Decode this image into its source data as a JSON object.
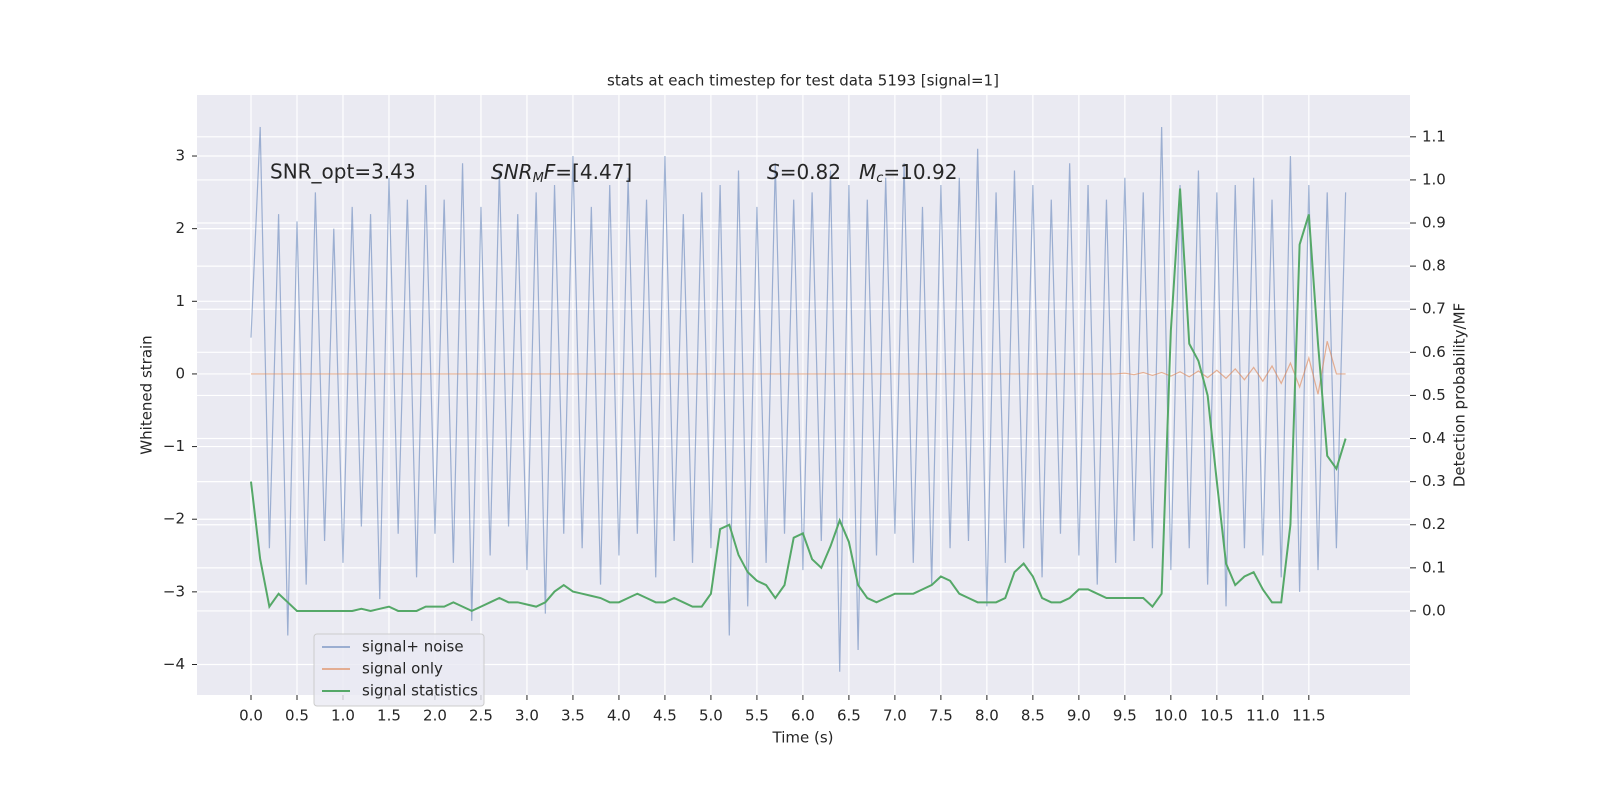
{
  "chart_data": {
    "type": "line",
    "title": "stats at each timestep for test data 5193 [signal=1]",
    "xlabel": "Time (s)",
    "ylabel": "Whitened strain",
    "y2label": "Detection probability/MF",
    "annotations": [
      {
        "text": "SNR_opt=3.43"
      },
      {
        "italic": "SNR",
        "sub": "M",
        "italic2": "F",
        "text": "=[4.47]"
      },
      {
        "italic": "S",
        "text": "=0.82",
        "italic2": "M",
        "sub": "c",
        "text2": "=10.92"
      }
    ],
    "grid": true,
    "legend": "lower left",
    "xlim": [
      -0.587,
      12.6
    ],
    "ylim": [
      -4.42,
      3.84
    ],
    "y2lim": [
      -0.195,
      1.197
    ],
    "xticks": [
      {
        "value": 0,
        "label": "0.0"
      },
      0.5,
      {
        "value": 1,
        "label": "1.0"
      },
      1.5,
      {
        "value": 2,
        "label": "2.0"
      },
      2.5,
      {
        "value": 3,
        "label": "3.0"
      },
      3.5,
      {
        "value": 4,
        "label": "4.0"
      },
      4.5,
      {
        "value": 5,
        "label": "5.0"
      },
      5.5,
      {
        "value": 6,
        "label": "6.0"
      },
      6.5,
      {
        "value": 7,
        "label": "7.0"
      },
      7.5,
      {
        "value": 8,
        "label": "8.0"
      },
      8.5,
      {
        "value": 9,
        "label": "9.0"
      },
      9.5,
      {
        "value": 10,
        "label": "10.0"
      },
      10.5,
      {
        "value": 11,
        "label": "11.0"
      },
      11.5
    ],
    "yticks": [
      {
        "value": -4,
        "label": "−4"
      },
      {
        "value": -3,
        "label": "−3"
      },
      {
        "value": -2,
        "label": "−2"
      },
      {
        "value": -1,
        "label": "−1"
      },
      0,
      1,
      2,
      3
    ],
    "y2ticks": [
      {
        "value": 0,
        "label": "0.0"
      },
      0.1,
      0.2,
      0.3,
      0.4,
      0.5,
      0.6,
      0.7,
      0.8,
      0.9,
      {
        "value": 1,
        "label": "1.0"
      },
      1.1
    ],
    "x": [
      0,
      0.1,
      0.2,
      0.3,
      0.4,
      0.5,
      0.6,
      0.7,
      0.8,
      0.9,
      1,
      1.1,
      1.2,
      1.3,
      1.4,
      1.5,
      1.6,
      1.7,
      1.8,
      1.9,
      2,
      2.1,
      2.2,
      2.3,
      2.4,
      2.5,
      2.6,
      2.7,
      2.8,
      2.9,
      3,
      3.1,
      3.2,
      3.3,
      3.4,
      3.5,
      3.6,
      3.7,
      3.8,
      3.9,
      4,
      4.1,
      4.2,
      4.3,
      4.4,
      4.5,
      4.6,
      4.7,
      4.8,
      4.9,
      5,
      5.1,
      5.2,
      5.3,
      5.4,
      5.5,
      5.6,
      5.7,
      5.8,
      5.9,
      6,
      6.1,
      6.2,
      6.3,
      6.4,
      6.5,
      6.6,
      6.7,
      6.8,
      6.9,
      7,
      7.1,
      7.2,
      7.3,
      7.4,
      7.5,
      7.6,
      7.7,
      7.8,
      7.9,
      8,
      8.1,
      8.2,
      8.3,
      8.4,
      8.5,
      8.6,
      8.7,
      8.8,
      8.9,
      9,
      9.1,
      9.2,
      9.3,
      9.4,
      9.5,
      9.6,
      9.7,
      9.8,
      9.9,
      10,
      10.1,
      10.2,
      10.3,
      10.4,
      10.5,
      10.6,
      10.7,
      10.8,
      10.9,
      11,
      11.1,
      11.2,
      11.3,
      11.4,
      11.5,
      11.6,
      11.7,
      11.8,
      11.9
    ],
    "series": [
      {
        "name": "signal+ noise",
        "color": "#4c72b0",
        "opacity": 0.5,
        "values": [
          0.5,
          3.4,
          -2.4,
          2.2,
          -3.6,
          2.1,
          -2.9,
          2.5,
          -2.3,
          2.0,
          -2.6,
          2.3,
          -2.1,
          2.2,
          -3.1,
          2.7,
          -2.2,
          2.4,
          -2.8,
          2.6,
          -2.2,
          2.4,
          -2.6,
          2.9,
          -3.4,
          2.3,
          -2.5,
          2.8,
          -2.1,
          2.2,
          -2.7,
          2.5,
          -3.3,
          2.6,
          -2.2,
          3.0,
          -2.4,
          2.3,
          -2.9,
          2.6,
          -2.5,
          2.7,
          -2.2,
          2.4,
          -2.8,
          3.0,
          -2.3,
          2.2,
          -2.6,
          2.5,
          -2.4,
          2.6,
          -3.6,
          2.8,
          -3.2,
          2.3,
          -2.6,
          2.9,
          -2.2,
          2.4,
          -2.7,
          2.5,
          -2.3,
          2.8,
          -4.1,
          2.6,
          -3.8,
          2.4,
          -2.5,
          2.7,
          -2.2,
          2.9,
          -2.6,
          2.3,
          -2.9,
          2.6,
          -2.4,
          2.7,
          -2.3,
          3.1,
          -3.2,
          2.5,
          -2.6,
          2.8,
          -2.4,
          2.6,
          -2.8,
          2.4,
          -2.2,
          2.9,
          -2.5,
          2.6,
          -2.9,
          2.4,
          -2.6,
          2.7,
          -2.3,
          2.5,
          -2.4,
          3.4,
          -2.7,
          2.6,
          -2.4,
          2.8,
          -2.9,
          2.5,
          -3.2,
          2.6,
          -2.4,
          2.7,
          -2.5,
          2.4,
          -2.8,
          3.0,
          -3.0,
          2.6,
          -2.7,
          2.5,
          -2.4,
          2.5
        ]
      },
      {
        "name": "signal only",
        "color": "#dd8452",
        "opacity": 0.6,
        "values": [
          0,
          0,
          0,
          0,
          0,
          0,
          0,
          0,
          0,
          0,
          0,
          0,
          0,
          0,
          0,
          0,
          0,
          0,
          0,
          0,
          0,
          0,
          0,
          0,
          0,
          0,
          0,
          0,
          0,
          0,
          0,
          0,
          0,
          0,
          0,
          0,
          0,
          0,
          0,
          0,
          0,
          0,
          0,
          0,
          0,
          0,
          0,
          0,
          0,
          0,
          0,
          0,
          0,
          0,
          0,
          0,
          0,
          0,
          0,
          0,
          0,
          0,
          0,
          0,
          0,
          0,
          0,
          0,
          0,
          0,
          0,
          0,
          0,
          0,
          0,
          0,
          0,
          0,
          0,
          0,
          0,
          0,
          0,
          0,
          0,
          0,
          0,
          0,
          0,
          0,
          0,
          0,
          0,
          0,
          0,
          0.01,
          -0.01,
          0.02,
          -0.02,
          0.02,
          -0.03,
          0.03,
          -0.04,
          0.04,
          -0.05,
          0.05,
          -0.06,
          0.07,
          -0.08,
          0.09,
          -0.1,
          0.11,
          -0.13,
          0.15,
          -0.18,
          0.22,
          -0.28,
          0.45,
          0,
          0
        ]
      },
      {
        "name": "signal statistics",
        "color": "#55a868",
        "opacity": 1,
        "axis": "y2",
        "values": [
          0.3,
          0.12,
          0.01,
          0.04,
          0.02,
          0,
          0,
          0,
          0,
          0,
          0,
          0,
          0.005,
          0,
          0.005,
          0.01,
          0,
          0,
          0,
          0.01,
          0.01,
          0.01,
          0.02,
          0.01,
          0,
          0.01,
          0.02,
          0.03,
          0.02,
          0.02,
          0.015,
          0.01,
          0.02,
          0.045,
          0.06,
          0.045,
          0.04,
          0.035,
          0.03,
          0.02,
          0.02,
          0.03,
          0.04,
          0.03,
          0.02,
          0.02,
          0.03,
          0.02,
          0.01,
          0.01,
          0.04,
          0.19,
          0.2,
          0.13,
          0.09,
          0.07,
          0.06,
          0.03,
          0.06,
          0.17,
          0.18,
          0.12,
          0.1,
          0.15,
          0.21,
          0.16,
          0.06,
          0.03,
          0.02,
          0.03,
          0.04,
          0.04,
          0.04,
          0.05,
          0.06,
          0.08,
          0.07,
          0.04,
          0.03,
          0.02,
          0.02,
          0.02,
          0.03,
          0.09,
          0.11,
          0.08,
          0.03,
          0.02,
          0.02,
          0.03,
          0.05,
          0.05,
          0.04,
          0.03,
          0.03,
          0.03,
          0.03,
          0.03,
          0.01,
          0.04,
          0.65,
          0.98,
          0.62,
          0.58,
          0.5,
          0.3,
          0.11,
          0.06,
          0.08,
          0.09,
          0.05,
          0.02,
          0.02,
          0.2,
          0.85,
          0.92,
          0.62,
          0.36,
          0.33,
          0.4
        ]
      }
    ]
  }
}
